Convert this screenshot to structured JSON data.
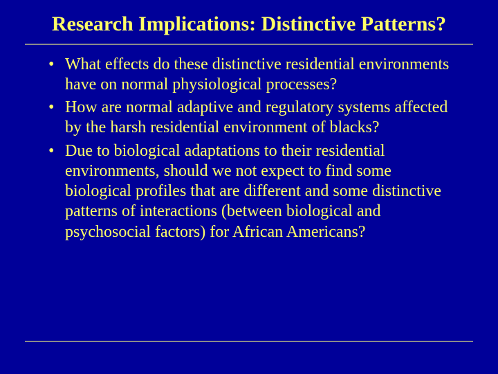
{
  "slide": {
    "background_color": "#000099",
    "text_color": "#ffff66",
    "title": "Research Implications: Distinctive Patterns?",
    "title_fontsize": 30,
    "title_weight": "bold",
    "body_fontsize": 24,
    "font_family": "Times New Roman",
    "divider_color": "#8a8a8a",
    "bullets": [
      "What effects do these distinctive residential environments have on normal physiological processes?",
      "How are normal adaptive and regulatory systems affected by the harsh residential environment of blacks?",
      "Due to biological adaptations to their residential environments, should we not expect to find some biological profiles that are different and some distinctive patterns of interactions (between biological and psychosocial factors) for African Americans?"
    ]
  }
}
